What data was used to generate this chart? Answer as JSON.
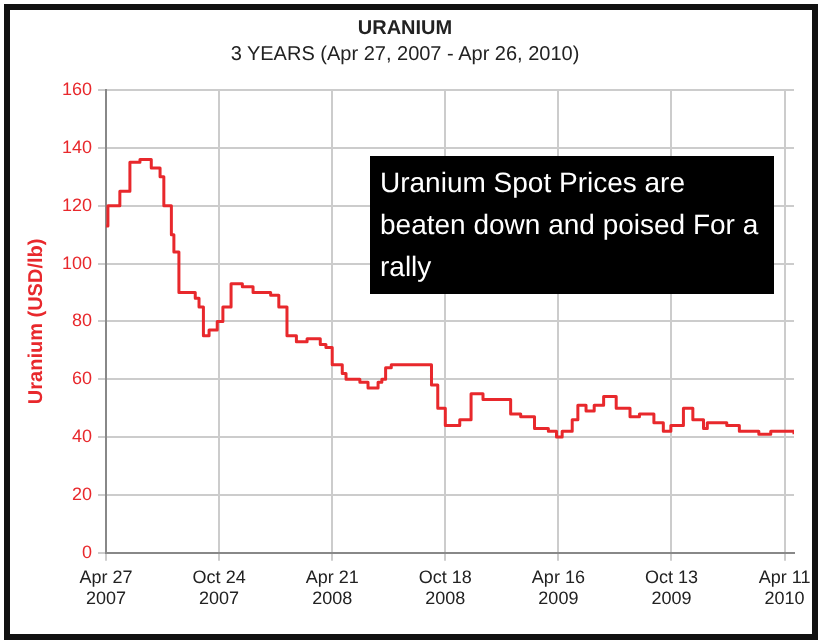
{
  "chart_data": {
    "type": "step",
    "title": "URANIUM",
    "subtitle": "3 YEARS (Apr 27, 2007 - Apr 26, 2010)",
    "ylabel": "Uranium (USD/lb)",
    "annotations": [
      "Uranium Spot Prices are beaten down and poised For a rally"
    ],
    "x": [
      "2007-04-27",
      "2007-04-30",
      "2007-05-19",
      "2007-06-04",
      "2007-06-20",
      "2007-07-08",
      "2007-07-22",
      "2007-07-28",
      "2007-08-09",
      "2007-08-13",
      "2007-08-21",
      "2007-09-16",
      "2007-09-22",
      "2007-09-29",
      "2007-10-08",
      "2007-10-21",
      "2007-10-30",
      "2007-11-12",
      "2007-11-30",
      "2007-12-17",
      "2008-01-14",
      "2008-01-27",
      "2008-02-09",
      "2008-02-24",
      "2008-03-12",
      "2008-04-02",
      "2008-04-11",
      "2008-04-21",
      "2008-05-07",
      "2008-05-13",
      "2008-06-04",
      "2008-06-17",
      "2008-07-03",
      "2008-07-09",
      "2008-07-15",
      "2008-07-24",
      "2008-09-16",
      "2008-09-26",
      "2008-10-06",
      "2008-10-18",
      "2008-11-10",
      "2008-11-28",
      "2008-12-17",
      "2009-01-11",
      "2009-01-30",
      "2009-02-15",
      "2009-03-09",
      "2009-03-31",
      "2009-04-13",
      "2009-04-22",
      "2009-05-08",
      "2009-05-17",
      "2009-05-30",
      "2009-06-12",
      "2009-06-27",
      "2009-07-17",
      "2009-08-08",
      "2009-08-23",
      "2009-09-15",
      "2009-09-30",
      "2009-10-12",
      "2009-11-01",
      "2009-11-16",
      "2009-12-03",
      "2009-12-09",
      "2010-01-09",
      "2010-01-29",
      "2010-03-01",
      "2010-03-20",
      "2010-04-26"
    ],
    "series": [
      {
        "color": "#e8282c",
        "values": [
          113,
          120,
          125,
          135,
          136,
          133,
          130,
          120,
          110,
          104,
          90,
          88,
          85,
          75,
          77,
          80,
          85,
          93,
          92,
          90,
          89,
          85,
          75,
          73,
          74,
          72,
          71,
          65,
          62,
          60,
          59,
          57,
          59,
          60,
          64,
          65,
          65,
          58,
          50,
          44,
          46,
          55,
          53,
          53,
          48,
          47,
          43,
          42,
          40,
          42,
          46,
          51,
          49,
          51,
          54,
          50,
          47,
          48,
          45,
          42,
          44,
          50,
          46,
          43,
          45,
          44,
          42,
          41,
          42,
          41
        ]
      }
    ],
    "xlim": [
      "2007-04-27",
      "2010-04-26"
    ],
    "xticks": [
      {
        "value": "2007-04-27",
        "label": "Apr 27 2007"
      },
      {
        "value": "2007-10-24",
        "label": "Oct 24 2007"
      },
      {
        "value": "2008-04-21",
        "label": "Apr 21 2008"
      },
      {
        "value": "2008-10-18",
        "label": "Oct 18 2008"
      },
      {
        "value": "2009-04-16",
        "label": "Apr 16 2009"
      },
      {
        "value": "2009-10-13",
        "label": "Oct 13 2009"
      },
      {
        "value": "2010-04-11",
        "label": "Apr 11 2010"
      }
    ],
    "ylim": [
      0,
      160
    ],
    "yticks": [
      0,
      20,
      40,
      60,
      80,
      100,
      120,
      140,
      160
    ],
    "grid": true,
    "legend": false,
    "marker": "none",
    "line_style": "solid"
  }
}
